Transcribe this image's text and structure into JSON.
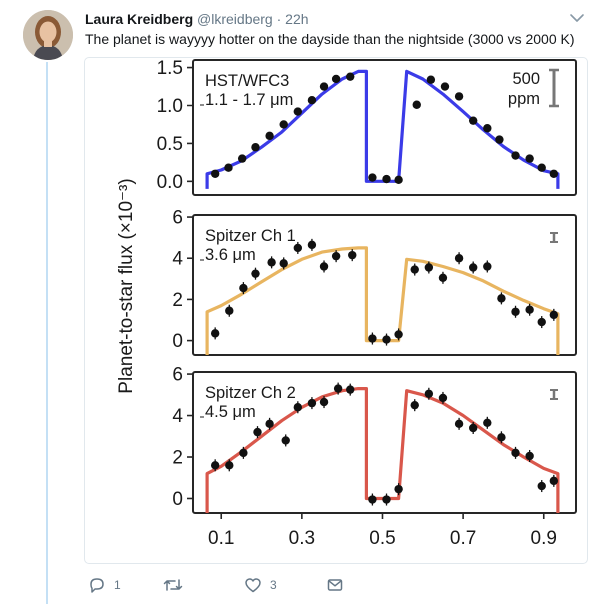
{
  "tweet": {
    "author_name": "Laura Kreidberg",
    "handle": "@lkreidberg",
    "separator": "·",
    "time": "22h",
    "text": "The planet is wayyyy hotter on the dayside than the nightside (3000 vs 2000 K)"
  },
  "icons": {
    "avatar": "avatar-photo",
    "caret": "chevron-down-icon",
    "reply": "reply-icon",
    "retweet": "retweet-icon",
    "like": "heart-icon",
    "dm": "envelope-icon"
  },
  "actions": {
    "reply_count": "1",
    "retweet_count": "",
    "like_count": "3"
  },
  "colors": {
    "accent": "#1da1f2",
    "thread": "#c4e0f5",
    "muted": "#657786",
    "wfc3": "#3b3be8",
    "ch1": "#e8b560",
    "ch2": "#d9574b"
  },
  "chart_data": {
    "type": "line",
    "ylabel": "Planet-to-star flux (×10⁻³)",
    "x_ticks": [
      "0.1",
      "0.3",
      "0.5",
      "0.7",
      "0.9"
    ],
    "xlim": [
      0.03,
      0.98
    ],
    "panels": [
      {
        "label_line1": "HST/WFC3",
        "label_line2": "1.1 - 1.7 μm",
        "scale_bar": [
          "500",
          "ppm"
        ],
        "color": "#3b3be8",
        "ylim": [
          -0.18,
          1.6
        ],
        "y_ticks": [
          "0.0",
          "0.5",
          "1.0",
          "1.5"
        ],
        "y_tick_values": [
          0,
          0.5,
          1.0,
          1.5
        ],
        "model": {
          "x": [
            0.065,
            0.065,
            0.1,
            0.15,
            0.2,
            0.25,
            0.3,
            0.35,
            0.4,
            0.44,
            0.46,
            0.46,
            0.54,
            0.54,
            0.56,
            0.6,
            0.65,
            0.7,
            0.75,
            0.8,
            0.85,
            0.9,
            0.935,
            0.935
          ],
          "y": [
            -0.1,
            0.1,
            0.15,
            0.27,
            0.45,
            0.65,
            0.9,
            1.15,
            1.35,
            1.45,
            1.45,
            0.0,
            0.0,
            0.0,
            1.45,
            1.35,
            1.15,
            0.92,
            0.68,
            0.46,
            0.28,
            0.14,
            0.1,
            -0.1
          ]
        },
        "points": {
          "x": [
            0.085,
            0.118,
            0.152,
            0.185,
            0.22,
            0.255,
            0.29,
            0.325,
            0.355,
            0.385,
            0.42,
            0.475,
            0.51,
            0.54,
            0.585,
            0.62,
            0.655,
            0.69,
            0.725,
            0.76,
            0.79,
            0.83,
            0.865,
            0.895,
            0.925
          ],
          "y": [
            0.1,
            0.18,
            0.3,
            0.45,
            0.6,
            0.75,
            0.92,
            1.07,
            1.25,
            1.35,
            1.38,
            0.05,
            0.03,
            0.02,
            1.01,
            1.34,
            1.25,
            1.12,
            0.8,
            0.7,
            0.55,
            0.34,
            0.3,
            0.18,
            0.1
          ]
        }
      },
      {
        "label_line1": "Spitzer Ch 1",
        "label_line2": "3.6 μm",
        "scale_bar": [],
        "color": "#e8b560",
        "ylim": [
          -0.7,
          6.1
        ],
        "y_ticks": [
          "0",
          "2",
          "4",
          "6"
        ],
        "y_tick_values": [
          0,
          2,
          4,
          6
        ],
        "model": {
          "x": [
            0.065,
            0.065,
            0.1,
            0.15,
            0.2,
            0.25,
            0.3,
            0.35,
            0.4,
            0.44,
            0.46,
            0.46,
            0.54,
            0.54,
            0.56,
            0.6,
            0.65,
            0.7,
            0.75,
            0.8,
            0.85,
            0.9,
            0.935,
            0.935
          ],
          "y": [
            -0.7,
            1.4,
            1.7,
            2.25,
            2.85,
            3.45,
            3.95,
            4.3,
            4.45,
            4.5,
            4.5,
            0.0,
            0.0,
            0.0,
            3.95,
            3.85,
            3.6,
            3.3,
            2.9,
            2.4,
            1.95,
            1.55,
            1.3,
            -0.7
          ]
        },
        "points": {
          "x": [
            0.085,
            0.12,
            0.155,
            0.185,
            0.225,
            0.255,
            0.29,
            0.325,
            0.355,
            0.385,
            0.425,
            0.475,
            0.51,
            0.54,
            0.58,
            0.615,
            0.65,
            0.69,
            0.725,
            0.76,
            0.795,
            0.83,
            0.865,
            0.895,
            0.925
          ],
          "y": [
            0.35,
            1.45,
            2.55,
            3.25,
            3.8,
            3.75,
            4.5,
            4.65,
            3.6,
            4.1,
            4.15,
            0.1,
            0.05,
            0.3,
            3.45,
            3.55,
            3.05,
            4.0,
            3.55,
            3.6,
            2.05,
            1.4,
            1.5,
            0.9,
            1.25
          ]
        }
      },
      {
        "label_line1": "Spitzer Ch 2",
        "label_line2": "4.5 μm",
        "scale_bar": [],
        "color": "#d9574b",
        "ylim": [
          -0.7,
          6.1
        ],
        "y_ticks": [
          "0",
          "2",
          "4",
          "6"
        ],
        "y_tick_values": [
          0,
          2,
          4,
          6
        ],
        "model": {
          "x": [
            0.065,
            0.065,
            0.1,
            0.15,
            0.2,
            0.25,
            0.3,
            0.35,
            0.4,
            0.44,
            0.46,
            0.46,
            0.54,
            0.54,
            0.56,
            0.6,
            0.65,
            0.7,
            0.75,
            0.8,
            0.85,
            0.9,
            0.935,
            0.935
          ],
          "y": [
            -0.7,
            1.2,
            1.55,
            2.25,
            3.0,
            3.75,
            4.4,
            4.9,
            5.2,
            5.3,
            5.3,
            0.0,
            0.0,
            0.0,
            5.2,
            5.0,
            4.6,
            4.0,
            3.3,
            2.6,
            2.0,
            1.45,
            1.2,
            -0.7
          ]
        },
        "points": {
          "x": [
            0.085,
            0.12,
            0.155,
            0.19,
            0.22,
            0.26,
            0.29,
            0.325,
            0.355,
            0.39,
            0.42,
            0.475,
            0.51,
            0.54,
            0.58,
            0.615,
            0.65,
            0.69,
            0.725,
            0.76,
            0.795,
            0.83,
            0.865,
            0.895,
            0.925
          ],
          "y": [
            1.6,
            1.6,
            2.2,
            3.2,
            3.6,
            2.8,
            4.4,
            4.6,
            4.65,
            5.3,
            5.25,
            -0.05,
            -0.05,
            0.45,
            4.5,
            5.05,
            4.85,
            3.6,
            3.4,
            3.65,
            2.95,
            2.2,
            2.05,
            0.6,
            0.85
          ]
        }
      }
    ]
  }
}
